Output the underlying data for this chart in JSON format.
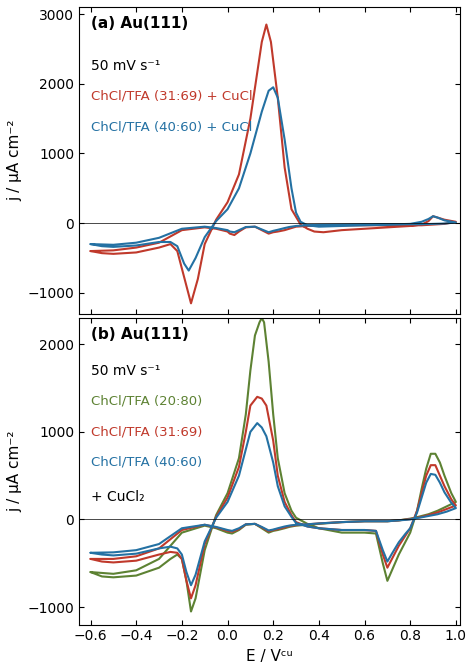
{
  "title_a": "(a) Au(111)",
  "title_b": "(b) Au(111)",
  "scan_rate": "50 mV s⁻¹",
  "legend_a": [
    "ChCl/TFA (31:69) + CuCl",
    "ChCl/TFA (40:60) + CuCl"
  ],
  "legend_b": [
    "ChCl/TFA (20:80)",
    "ChCl/TFA (31:69)",
    "ChCl/TFA (40:60)",
    "+ CuCl₂"
  ],
  "color_red": "#c0392b",
  "color_blue": "#2471a3",
  "color_green": "#5d8233",
  "ylabel": "j / μA cm⁻²",
  "xlabel": "E / Vᶜᵘ",
  "xlim": [
    -0.65,
    1.02
  ],
  "ylim_a": [
    -1300,
    3100
  ],
  "ylim_b": [
    -1200,
    2300
  ],
  "yticks_a": [
    -1000,
    0,
    1000,
    2000,
    3000
  ],
  "yticks_b": [
    -1000,
    0,
    1000,
    2000
  ],
  "xticks": [
    -0.6,
    -0.4,
    -0.2,
    0.0,
    0.2,
    0.4,
    0.6,
    0.8,
    1.0
  ]
}
